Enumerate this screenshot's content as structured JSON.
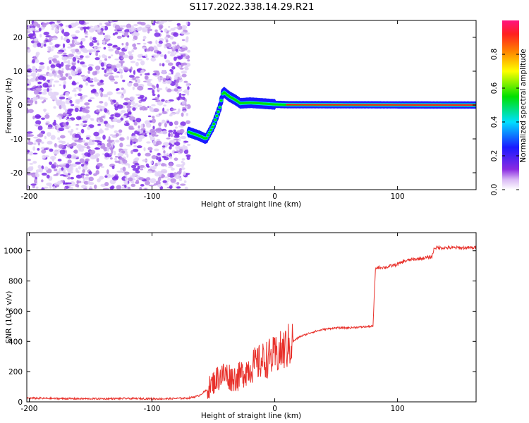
{
  "chart_data": [
    {
      "type": "heatmap",
      "title": "S117.2022.338.14.29.R21",
      "xlabel": "Height of straight line (km)",
      "ylabel": "Frequency (Hz)",
      "xlim": [
        -202,
        164
      ],
      "ylim": [
        -25,
        25
      ],
      "x_ticks": [
        -200,
        -100,
        0,
        100
      ],
      "x_tick_labels": [
        "-200",
        "-100",
        "0",
        "100"
      ],
      "y_ticks": [
        -20,
        -10,
        0,
        10,
        20
      ],
      "y_tick_labels": [
        "-20",
        "-10",
        "0",
        "10",
        "20"
      ],
      "noise_region_x": [
        -202,
        -70
      ],
      "signal_track": [
        {
          "x": -70,
          "y": -8
        },
        {
          "x": -62,
          "y": -9
        },
        {
          "x": -56,
          "y": -10
        },
        {
          "x": -50,
          "y": -6
        },
        {
          "x": -45,
          "y": -1
        },
        {
          "x": -42,
          "y": 4
        },
        {
          "x": -37,
          "y": 2.5
        },
        {
          "x": -32,
          "y": 1.5
        },
        {
          "x": -28,
          "y": 0.5
        },
        {
          "x": -20,
          "y": 0.7
        },
        {
          "x": -12,
          "y": 0.5
        },
        {
          "x": 0,
          "y": 0.2
        },
        {
          "x": 10,
          "y": 0.1
        },
        {
          "x": 164,
          "y": 0
        }
      ],
      "colorbar": {
        "label": "Normalized spectral amplitude",
        "range": [
          0,
          1
        ],
        "ticks": [
          0.0,
          0.2,
          0.4,
          0.6,
          0.8
        ],
        "tick_labels": [
          "0.0",
          "0.2",
          "0.4",
          "0.6",
          "0.8"
        ],
        "colors": [
          "#ffffff",
          "#8a2be2",
          "#1a1aff",
          "#00e0ff",
          "#00e000",
          "#ffff00",
          "#ff8000",
          "#ff2020",
          "#ff1480"
        ]
      },
      "color_low": "#7b2be8",
      "color_high": "#ff2020"
    },
    {
      "type": "line",
      "xlabel": "Height of straight line (km)",
      "ylabel": "SNR (10 * v/v)",
      "xlim": [
        -202,
        164
      ],
      "ylim": [
        0,
        1120
      ],
      "x_ticks": [
        -200,
        -100,
        0,
        100
      ],
      "x_tick_labels": [
        "-200",
        "-100",
        "0",
        "100"
      ],
      "y_ticks": [
        0,
        200,
        400,
        600,
        800,
        1000
      ],
      "y_tick_labels": [
        "0",
        "200",
        "400",
        "600",
        "800",
        "1000"
      ],
      "line_color": "#e8302a",
      "series": [
        {
          "name": "SNR",
          "x": [
            -202,
            -180,
            -150,
            -120,
            -90,
            -70,
            -62,
            -55,
            -50,
            -45,
            -40,
            -35,
            -30,
            -25,
            -20,
            -15,
            -10,
            -5,
            0,
            5,
            10,
            15,
            20,
            30,
            40,
            50,
            60,
            70,
            80,
            82,
            84,
            90,
            95,
            100,
            105,
            110,
            120,
            128,
            130,
            140,
            150,
            164
          ],
          "y": [
            25,
            22,
            20,
            22,
            20,
            25,
            40,
            80,
            130,
            170,
            180,
            160,
            160,
            200,
            230,
            250,
            270,
            290,
            300,
            330,
            360,
            400,
            430,
            460,
            480,
            490,
            490,
            495,
            500,
            880,
            890,
            890,
            900,
            910,
            930,
            940,
            950,
            960,
            1020,
            1020,
            1020,
            1020
          ]
        }
      ]
    }
  ]
}
